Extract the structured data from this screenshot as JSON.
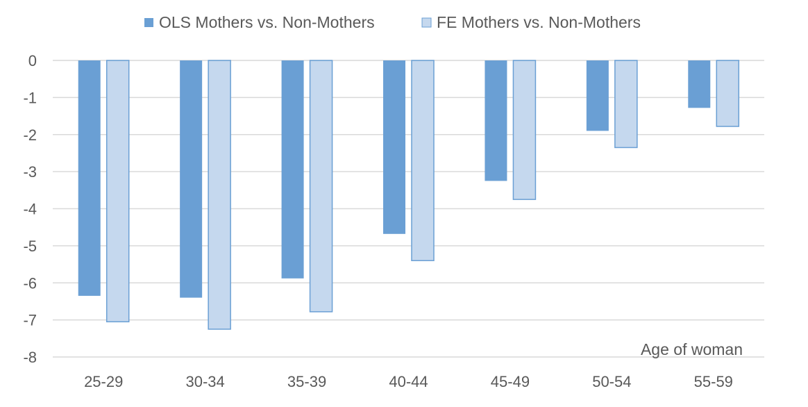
{
  "chart_data": {
    "type": "bar",
    "categories": [
      "25-29",
      "30-34",
      "35-39",
      "40-44",
      "45-49",
      "50-54",
      "55-59"
    ],
    "series": [
      {
        "name": "OLS Mothers vs. Non-Mothers",
        "values": [
          -6.35,
          -6.4,
          -5.88,
          -4.68,
          -3.25,
          -1.9,
          -1.28
        ],
        "color": "#6a9fd4"
      },
      {
        "name": "FE Mothers vs. Non-Mothers",
        "values": [
          -7.05,
          -7.25,
          -6.78,
          -5.4,
          -3.75,
          -2.35,
          -1.78
        ],
        "color": "#c5d8ee",
        "stroke": "#6a9fd4"
      }
    ],
    "title": "",
    "xlabel": "Age of woman",
    "ylabel": "",
    "ylim": [
      -8,
      0
    ],
    "yticks": [
      0,
      -1,
      -2,
      -3,
      -4,
      -5,
      -6,
      -7,
      -8
    ],
    "grid": true,
    "gridColor": "#d9d9d9",
    "legendPosition": "top-center"
  }
}
